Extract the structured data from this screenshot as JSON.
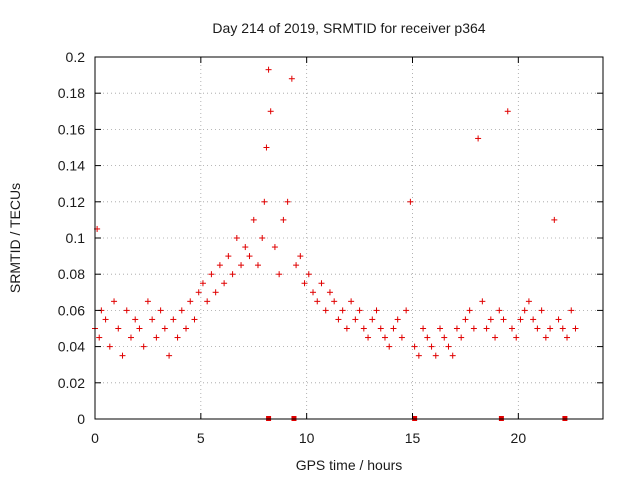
{
  "chart_data": {
    "type": "scatter",
    "title": "Day 214 of 2019, SRMTID for receiver p364",
    "xlabel": "GPS time / hours",
    "ylabel": "SRMTID / TECUs",
    "xlim": [
      0,
      24
    ],
    "ylim": [
      0,
      0.2
    ],
    "x_ticks": [
      0,
      5,
      10,
      15,
      20
    ],
    "x_tick_labels": [
      "0",
      "5",
      "10",
      "15",
      "20"
    ],
    "y_ticks": [
      0,
      0.02,
      0.04,
      0.06,
      0.08,
      0.1,
      0.12,
      0.14,
      0.16,
      0.18,
      0.2
    ],
    "y_tick_labels": [
      "0",
      "0.02",
      "0.04",
      "0.06",
      "0.08",
      "0.1",
      "0.12",
      "0.14",
      "0.16",
      "0.18",
      "0.2"
    ],
    "grid": true,
    "marker": "+",
    "series_color": "#e00000",
    "series": [
      {
        "name": "SRMTID",
        "x": [
          0.0,
          0.1,
          0.2,
          0.3,
          0.5,
          0.7,
          0.9,
          1.1,
          1.3,
          1.5,
          1.7,
          1.9,
          2.1,
          2.3,
          2.5,
          2.7,
          2.9,
          3.1,
          3.3,
          3.5,
          3.7,
          3.9,
          4.1,
          4.3,
          4.5,
          4.7,
          4.9,
          5.1,
          5.3,
          5.5,
          5.7,
          5.9,
          6.1,
          6.3,
          6.5,
          6.7,
          6.9,
          7.1,
          7.3,
          7.5,
          7.7,
          7.9,
          8.0,
          8.1,
          8.2,
          8.3,
          8.5,
          8.7,
          8.9,
          9.1,
          9.3,
          9.5,
          9.7,
          9.9,
          10.1,
          10.3,
          10.5,
          10.7,
          10.9,
          11.1,
          11.3,
          11.5,
          11.7,
          11.9,
          12.1,
          12.3,
          12.5,
          12.7,
          12.9,
          13.1,
          13.3,
          13.5,
          13.7,
          13.9,
          14.1,
          14.3,
          14.5,
          14.7,
          14.9,
          15.1,
          15.3,
          15.5,
          15.7,
          15.9,
          16.1,
          16.3,
          16.5,
          16.7,
          16.9,
          17.1,
          17.3,
          17.5,
          17.7,
          17.9,
          18.1,
          18.3,
          18.5,
          18.7,
          18.9,
          19.1,
          19.3,
          19.5,
          19.7,
          19.9,
          20.1,
          20.3,
          20.5,
          20.7,
          20.9,
          21.1,
          21.3,
          21.5,
          21.7,
          21.9,
          22.1,
          22.3,
          22.5,
          22.7
        ],
        "y": [
          0.05,
          0.105,
          0.045,
          0.06,
          0.055,
          0.04,
          0.065,
          0.05,
          0.035,
          0.06,
          0.045,
          0.055,
          0.05,
          0.04,
          0.065,
          0.055,
          0.045,
          0.06,
          0.05,
          0.035,
          0.055,
          0.045,
          0.06,
          0.05,
          0.065,
          0.055,
          0.07,
          0.075,
          0.065,
          0.08,
          0.07,
          0.085,
          0.075,
          0.09,
          0.08,
          0.1,
          0.085,
          0.095,
          0.09,
          0.11,
          0.085,
          0.1,
          0.12,
          0.15,
          0.193,
          0.17,
          0.095,
          0.08,
          0.11,
          0.12,
          0.188,
          0.085,
          0.09,
          0.075,
          0.08,
          0.07,
          0.065,
          0.075,
          0.06,
          0.07,
          0.065,
          0.055,
          0.06,
          0.05,
          0.065,
          0.055,
          0.06,
          0.05,
          0.045,
          0.055,
          0.06,
          0.05,
          0.045,
          0.04,
          0.05,
          0.055,
          0.045,
          0.06,
          0.12,
          0.04,
          0.035,
          0.05,
          0.045,
          0.04,
          0.035,
          0.05,
          0.045,
          0.04,
          0.035,
          0.05,
          0.045,
          0.055,
          0.06,
          0.05,
          0.155,
          0.065,
          0.05,
          0.055,
          0.045,
          0.06,
          0.055,
          0.17,
          0.05,
          0.045,
          0.055,
          0.06,
          0.065,
          0.055,
          0.05,
          0.06,
          0.045,
          0.05,
          0.11,
          0.055,
          0.05,
          0.045,
          0.06,
          0.05
        ]
      }
    ],
    "axis_markers_x": [
      8.2,
      9.4,
      15.1,
      19.2,
      22.2
    ]
  }
}
